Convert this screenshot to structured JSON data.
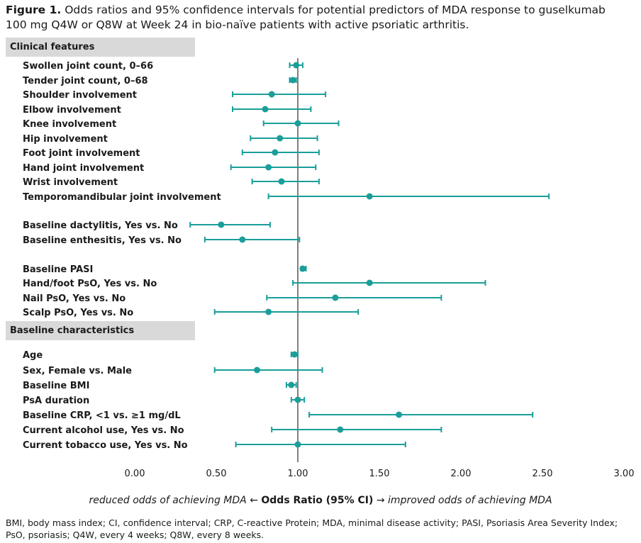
{
  "figure": {
    "label": "Figure 1.",
    "title": "Odds ratios and 95% confidence intervals for potential predictors of MDA response to guselkumab 100 mg Q4W or Q8W at Week 24 in bio-naïve patients with active psoriatic arthritis."
  },
  "sections": [
    "Clinical features",
    "Baseline characteristics"
  ],
  "x_caption": {
    "left": "reduced odds of achieving MDA",
    "left_arrow": "←",
    "center": "Odds Ratio (95% CI)",
    "right_arrow": "→",
    "right": "improved odds of achieving MDA"
  },
  "footnote": "BMI, body mass index; CI, confidence interval; CRP, C-reactive Protein; MDA, minimal disease activity; PASI, Psoriasis Area Severity Index; PsO, psoriasis; Q4W, every 4 weeks; Q8W, every 8 weeks.",
  "colors": {
    "marker": "#1a9e9a",
    "reference": "#000000",
    "section_bg": "#d9d9d9"
  },
  "chart_data": {
    "type": "forest",
    "xlabel": "Odds Ratio (95% CI)",
    "xlim": [
      0,
      3
    ],
    "x_ticks": [
      "0.00",
      "0.50",
      "1.00",
      "1.50",
      "2.00",
      "2.50",
      "3.00"
    ],
    "reference_line": 1.0,
    "rows": [
      {
        "section": "Clinical features",
        "label": "Swollen joint count, 0–66",
        "or": 0.99,
        "lo": 0.95,
        "hi": 1.03
      },
      {
        "section": "Clinical features",
        "label": "Tender joint count, 0–68",
        "or": 0.97,
        "lo": 0.95,
        "hi": 0.99
      },
      {
        "section": "Clinical features",
        "label": "Shoulder involvement",
        "or": 0.84,
        "lo": 0.6,
        "hi": 1.17
      },
      {
        "section": "Clinical features",
        "label": "Elbow involvement",
        "or": 0.8,
        "lo": 0.6,
        "hi": 1.08
      },
      {
        "section": "Clinical features",
        "label": "Knee involvement",
        "or": 1.0,
        "lo": 0.79,
        "hi": 1.25
      },
      {
        "section": "Clinical features",
        "label": "Hip involvement",
        "or": 0.89,
        "lo": 0.71,
        "hi": 1.12
      },
      {
        "section": "Clinical features",
        "label": "Foot joint involvement",
        "or": 0.86,
        "lo": 0.66,
        "hi": 1.13
      },
      {
        "section": "Clinical features",
        "label": "Hand joint involvement",
        "or": 0.82,
        "lo": 0.59,
        "hi": 1.11
      },
      {
        "section": "Clinical features",
        "label": "Wrist involvement",
        "or": 0.9,
        "lo": 0.72,
        "hi": 1.13
      },
      {
        "section": "Clinical features",
        "label": "Temporomandibular  joint involvement",
        "or": 1.44,
        "lo": 0.82,
        "hi": 2.54
      },
      {
        "section": "Clinical features",
        "label": "Baseline dactylitis, Yes vs. No",
        "or": 0.53,
        "lo": 0.34,
        "hi": 0.83
      },
      {
        "section": "Clinical features",
        "label": "Baseline enthesitis, Yes vs. No",
        "or": 0.66,
        "lo": 0.43,
        "hi": 1.01
      },
      {
        "section": "Clinical features",
        "label": "Baseline PASI",
        "or": 1.03,
        "lo": 1.02,
        "hi": 1.05
      },
      {
        "section": "Clinical features",
        "label": "Hand/foot PsO, Yes vs. No",
        "or": 1.44,
        "lo": 0.97,
        "hi": 2.15
      },
      {
        "section": "Clinical features",
        "label": "Nail PsO, Yes vs. No",
        "or": 1.23,
        "lo": 0.81,
        "hi": 1.88
      },
      {
        "section": "Clinical features",
        "label": "Scalp PsO, Yes vs. No",
        "or": 0.82,
        "lo": 0.49,
        "hi": 1.37
      },
      {
        "section": "Baseline characteristics",
        "label": "Age",
        "or": 0.98,
        "lo": 0.96,
        "hi": 1.0
      },
      {
        "section": "Baseline characteristics",
        "label": "Sex, Female vs. Male",
        "or": 0.75,
        "lo": 0.49,
        "hi": 1.15
      },
      {
        "section": "Baseline characteristics",
        "label": "Baseline BMI",
        "or": 0.96,
        "lo": 0.93,
        "hi": 0.99
      },
      {
        "section": "Baseline characteristics",
        "label": "PsA duration",
        "or": 1.0,
        "lo": 0.96,
        "hi": 1.04
      },
      {
        "section": "Baseline characteristics",
        "label": "Baseline CRP, <1 vs. ≥1 mg/dL",
        "or": 1.62,
        "lo": 1.07,
        "hi": 2.44
      },
      {
        "section": "Baseline characteristics",
        "label": "Current alcohol use, Yes vs. No",
        "or": 1.26,
        "lo": 0.84,
        "hi": 1.88
      },
      {
        "section": "Baseline characteristics",
        "label": "Current tobacco use, Yes vs. No",
        "or": 1.0,
        "lo": 0.62,
        "hi": 1.66
      }
    ]
  }
}
